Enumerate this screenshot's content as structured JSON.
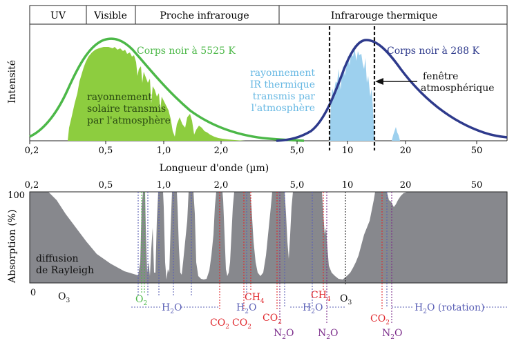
{
  "bands": [
    "UV",
    "Visible",
    "Proche infrarouge",
    "Infrarouge thermique"
  ],
  "top_axis_ticks": [
    "0,2",
    "0,5",
    "1,0",
    "2,0",
    "5,0",
    "10",
    "20",
    "50"
  ],
  "bottom_axis_ticks": [
    "0,2",
    "0,5",
    "1,0",
    "2,0",
    "5,0",
    "10",
    "20",
    "50"
  ],
  "top_panel": {
    "y_label": "Intensité",
    "x_label": "Longueur d'onde (µm)",
    "sun_curve_label": "Corps noir à 5525 K",
    "earth_curve_label": "Corps noir à 288 K",
    "solar_transmitted": [
      "rayonnement",
      "solaire transmis",
      "par l'atmosphère"
    ],
    "ir_transmitted": [
      "rayonnement",
      "IR thermique",
      "transmis par",
      "l'atmosphère"
    ],
    "window_label": [
      "fenêtre",
      "atmosphérique"
    ]
  },
  "bottom_panel": {
    "y_label": "Absorption (%)",
    "y_max_label": "100",
    "y_min_label": "0",
    "rayleigh_label": [
      "diffusion",
      "de Rayleigh"
    ]
  },
  "molecules": {
    "o3_left": "O3",
    "o2": "O2",
    "h2o_1": "H2O",
    "ch4_1": "CH4",
    "h2o_2": "H2O",
    "co2_1": "CO2",
    "co2_2": "CO2",
    "co2_3": "CO2",
    "n2o_1": "N2O",
    "h2o_3": "H2O",
    "ch4_2": "CH4",
    "n2o_2": "N2O",
    "o3_right": "O3",
    "co2_4": "CO2",
    "n2o_3": "N2O",
    "h2o_rotation": "H2O (rotation)"
  },
  "colors": {
    "sun": "#4cb848",
    "sun_fill": "#8dcd3f",
    "earth": "#2e3a8c",
    "ir_fill": "#9dd0ee",
    "ir_text": "#67b8e3",
    "absorption": "#87888d",
    "co2": "#e0262b",
    "n2o": "#7b2c8a",
    "h2o": "#5a5fb5",
    "o2": "#4cb848"
  }
}
